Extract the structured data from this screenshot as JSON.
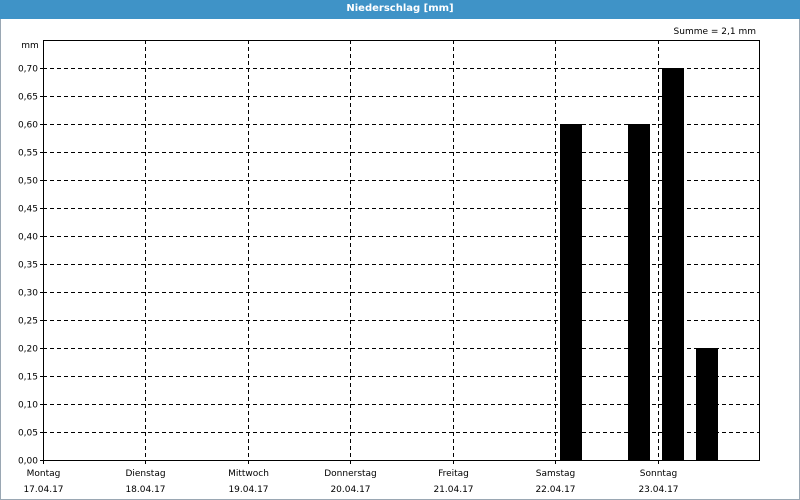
{
  "window": {
    "title": "Niederschlag [mm]"
  },
  "summary": {
    "label": "Summe = 2,1 mm"
  },
  "colors": {
    "titlebar": "#3f93c7",
    "bar": "#000000",
    "grid": "#000000"
  },
  "chart_data": {
    "type": "bar",
    "title": "Niederschlag [mm]",
    "ylabel": "mm",
    "ylim": [
      0,
      0.75
    ],
    "yticks": [
      "0,00",
      "0,05",
      "0,10",
      "0,15",
      "0,20",
      "0,25",
      "0,30",
      "0,35",
      "0,40",
      "0,45",
      "0,50",
      "0,55",
      "0,60",
      "0,65",
      "0,70"
    ],
    "xlim_days": 7,
    "categories": [
      {
        "day": "Montag",
        "date": "17.04.17"
      },
      {
        "day": "Dienstag",
        "date": "18.04.17"
      },
      {
        "day": "Mittwoch",
        "date": "19.04.17"
      },
      {
        "day": "Donnerstag",
        "date": "20.04.17"
      },
      {
        "day": "Freitag",
        "date": "21.04.17"
      },
      {
        "day": "Samstag",
        "date": "22.04.17"
      },
      {
        "day": "Sonntag",
        "date": "23.04.17"
      }
    ],
    "bars": [
      {
        "x": 5.15,
        "value": 0.6
      },
      {
        "x": 5.82,
        "value": 0.6
      },
      {
        "x": 6.15,
        "value": 0.7
      },
      {
        "x": 6.48,
        "value": 0.2
      }
    ],
    "grid": true
  }
}
